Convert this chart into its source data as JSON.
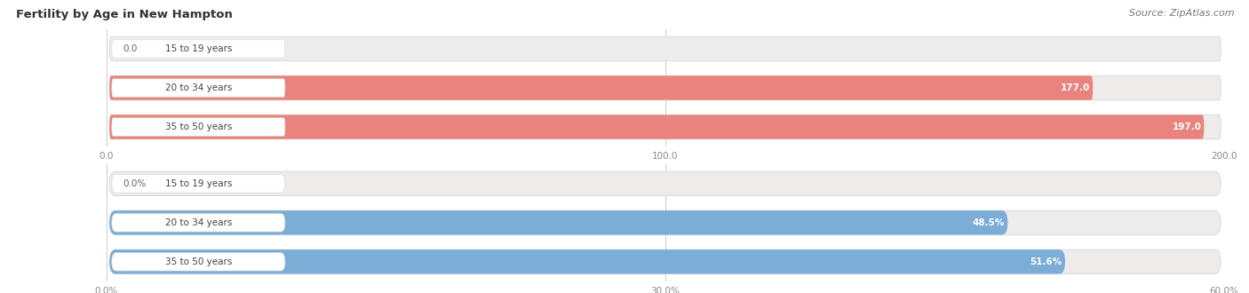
{
  "title": "Fertility by Age in New Hampton",
  "source": "Source: ZipAtlas.com",
  "top_chart": {
    "categories": [
      "15 to 19 years",
      "20 to 34 years",
      "35 to 50 years"
    ],
    "values": [
      0.0,
      177.0,
      197.0
    ],
    "bar_color": "#E8837E",
    "bar_bg_color": "#EEEBEB",
    "xlim": [
      0,
      200
    ],
    "xticks": [
      0.0,
      100.0,
      200.0
    ],
    "xtick_labels": [
      "0.0",
      "100.0",
      "200.0"
    ],
    "value_labels": [
      "0.0",
      "177.0",
      "197.0"
    ]
  },
  "bottom_chart": {
    "categories": [
      "15 to 19 years",
      "20 to 34 years",
      "35 to 50 years"
    ],
    "values": [
      0.0,
      48.5,
      51.6
    ],
    "bar_color": "#7BADD6",
    "bar_bg_color": "#EEEBEB",
    "xlim": [
      0,
      60
    ],
    "xticks": [
      0.0,
      30.0,
      60.0
    ],
    "xtick_labels": [
      "0.0%",
      "30.0%",
      "60.0%"
    ],
    "value_labels": [
      "0.0%",
      "48.5%",
      "51.6%"
    ]
  },
  "label_fontsize": 7.5,
  "value_fontsize": 7.5,
  "title_fontsize": 9.5,
  "source_fontsize": 8,
  "bar_height": 0.62,
  "background_color": "#FFFFFF",
  "value_color_inside": "#FFFFFF",
  "value_color_outside": "#666666",
  "label_bg_color": "#FFFFFF",
  "label_text_color": "#444444",
  "tick_color": "#888888",
  "grid_color": "#CCCCCC"
}
